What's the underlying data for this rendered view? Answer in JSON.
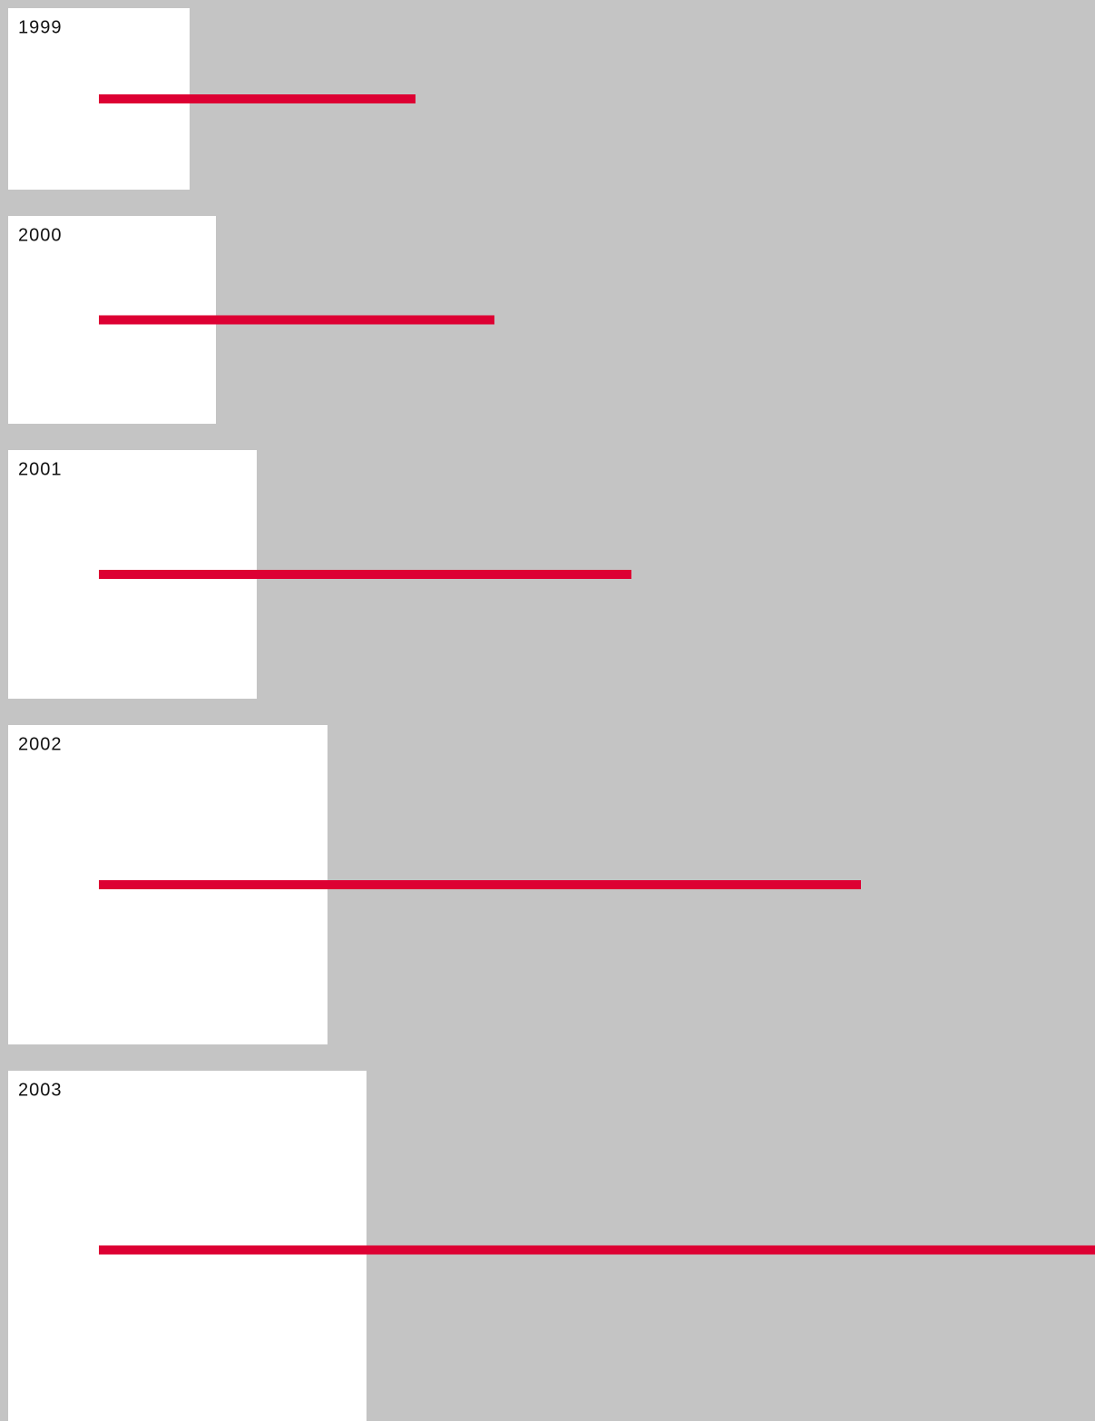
{
  "chart_data": {
    "type": "bar",
    "categories": [
      "1999",
      "2000",
      "2001",
      "2002",
      "2003"
    ],
    "values": [
      349,
      436,
      587,
      840,
      1100
    ],
    "sizes": [
      200,
      229,
      274,
      352,
      395
    ],
    "color": "#dd0033",
    "box_color": "#ffffff"
  }
}
